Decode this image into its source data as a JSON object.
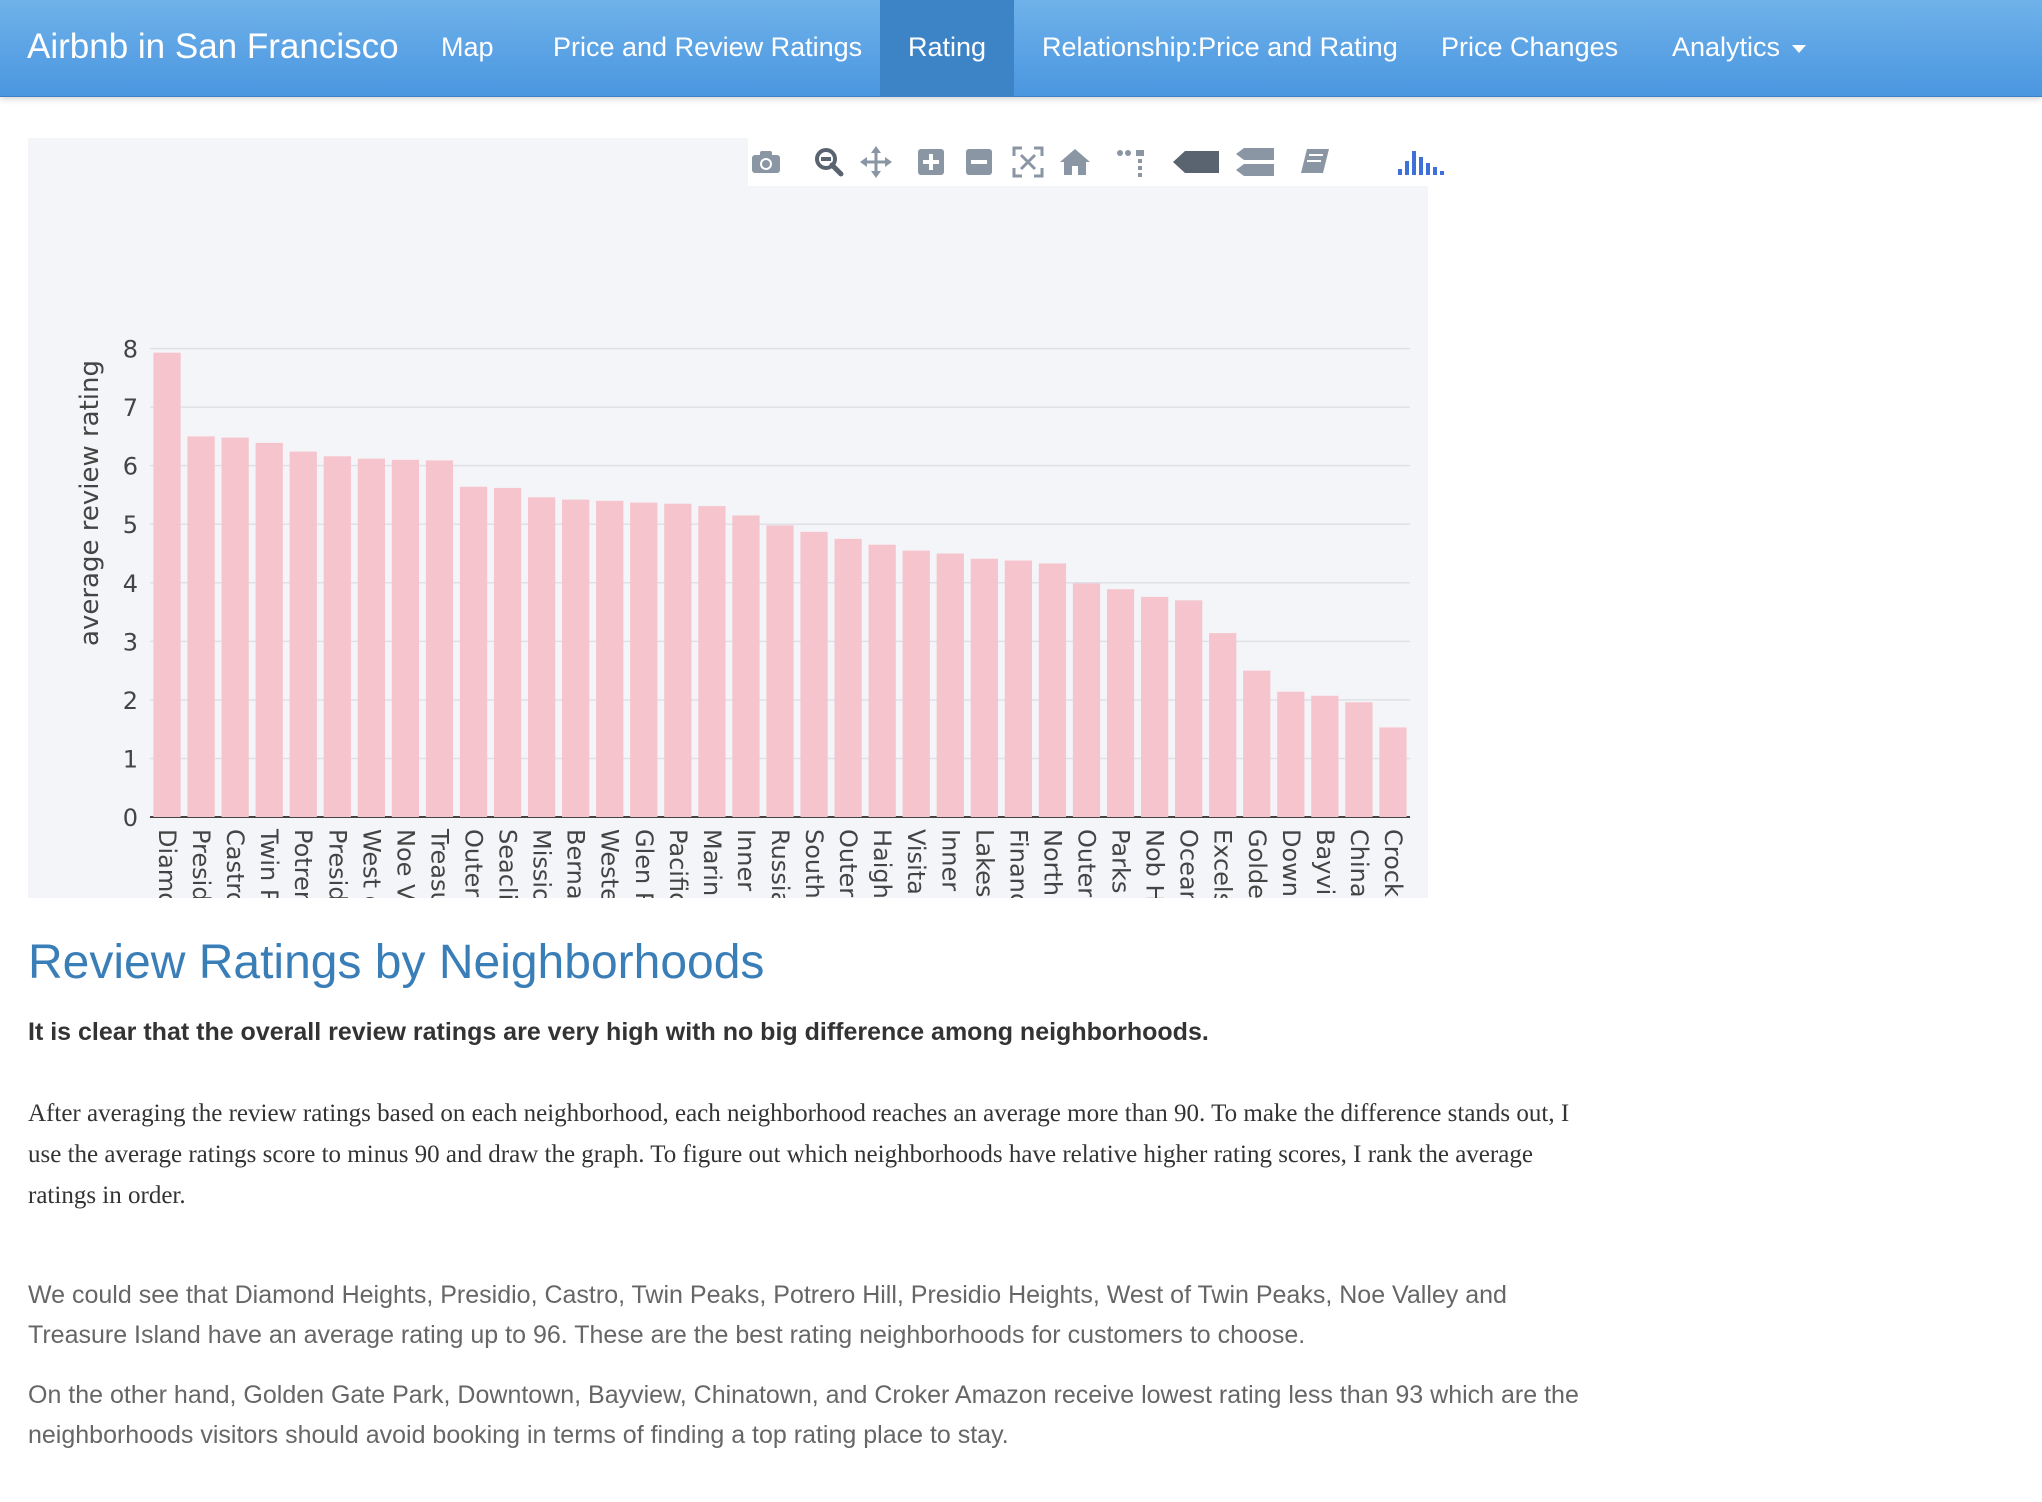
{
  "navbar": {
    "brand": "Airbnb in San Francisco",
    "items": [
      {
        "label": "Map",
        "active": false
      },
      {
        "label": "Price and Review Ratings",
        "active": false
      },
      {
        "label": "Rating",
        "active": true
      },
      {
        "label": "Relationship:Price and Rating",
        "active": false
      },
      {
        "label": "Price Changes",
        "active": false
      },
      {
        "label": "Analytics",
        "active": false,
        "dropdown": true
      }
    ]
  },
  "modebar": {
    "buttons": [
      "camera-icon",
      "zoom-icon",
      "pan-icon",
      "zoom-in-icon",
      "zoom-out-icon",
      "autoscale-icon",
      "reset-axes-icon",
      "toggle-spike-lines-icon",
      "hover-closest-icon",
      "hover-compare-icon",
      "edit-in-chart-studio-icon",
      "plotly-logo-icon"
    ]
  },
  "chart_data": {
    "type": "bar",
    "ylabel": "average review rating",
    "ylim": [
      0,
      8.3
    ],
    "yticks": [
      0,
      1,
      2,
      3,
      4,
      5,
      6,
      7,
      8
    ],
    "grid": true,
    "bar_color": "#f6c4cd",
    "categories": [
      "Diamo",
      "Presid",
      "Castro",
      "Twin P",
      "Potrer",
      "Presid",
      "West o",
      "Noe V",
      "Treasu",
      "Outer",
      "Seacli",
      "Missio",
      "Berna",
      "Weste",
      "Glen P",
      "Pacific",
      "Marin",
      "Inner",
      "Russia",
      "South",
      "Outer",
      "Haight",
      "Visita",
      "Inner",
      "Lakes",
      "Financ",
      "North",
      "Outer",
      "Parks",
      "Nob H",
      "Ocean",
      "Excels",
      "Golde",
      "Down",
      "Bayvi",
      "China",
      "Crock"
    ],
    "values": [
      7.93,
      6.5,
      6.48,
      6.39,
      6.24,
      6.16,
      6.12,
      6.1,
      6.09,
      5.64,
      5.62,
      5.46,
      5.42,
      5.4,
      5.37,
      5.35,
      5.31,
      5.15,
      4.98,
      4.87,
      4.75,
      4.65,
      4.55,
      4.5,
      4.41,
      4.38,
      4.33,
      3.99,
      3.89,
      3.76,
      3.7,
      3.14,
      2.5,
      2.14,
      2.07,
      1.96,
      1.53
    ]
  },
  "content": {
    "title": "Review Ratings by Neighborhoods",
    "lead": "It is clear that the overall review ratings are very high with no big difference among neighborhoods.",
    "para1": "After averaging the review ratings based on each neighborhood, each neighborhood reaches an average more than 90. To make the difference stands out, I use the average ratings score to minus 90 and draw the graph. To figure out which neighborhoods have relative higher rating scores, I rank the average ratings in order.",
    "para2": "We could see that Diamond Heights, Presidio, Castro, Twin Peaks, Potrero Hill, Presidio Heights, West of Twin Peaks, Noe Valley and Treasure Island have an average rating up to 96. These are the best rating neighborhoods for customers to choose.",
    "para3": "On the other hand, Golden Gate Park, Downtown, Bayview, Chinatown, and Croker Amazon receive lowest rating less than 93 which are the neighborhoods visitors should avoid booking in terms of finding a top rating place to stay."
  }
}
